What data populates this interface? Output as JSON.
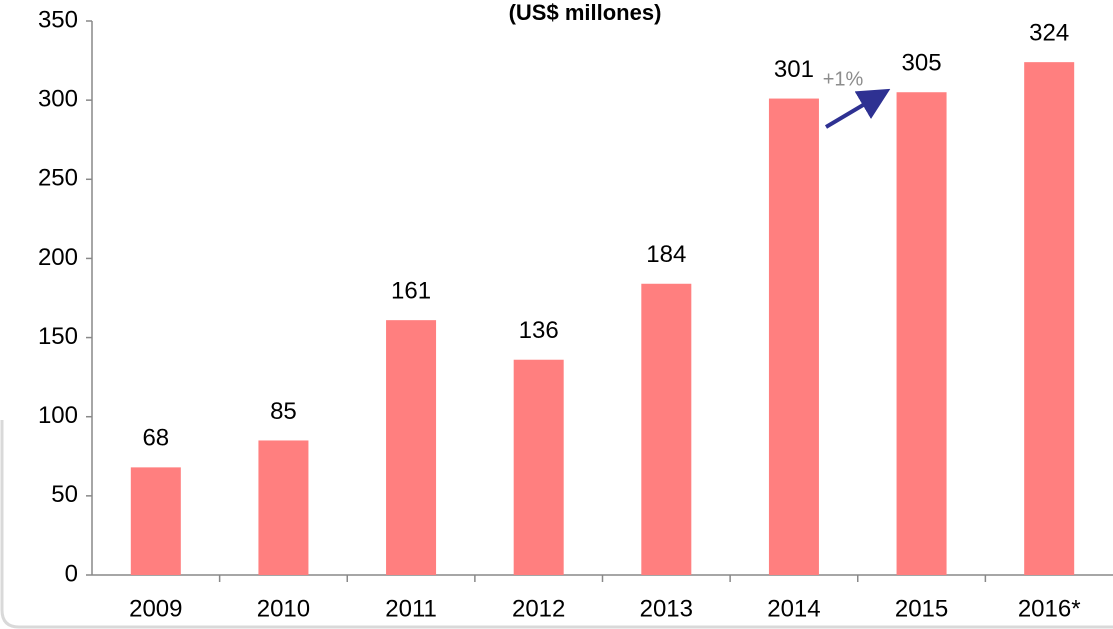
{
  "chart_data": {
    "type": "bar",
    "title": "(US$ millones)",
    "categories": [
      "2009",
      "2010",
      "2011",
      "2012",
      "2013",
      "2014",
      "2015",
      "2016*"
    ],
    "values": [
      68,
      85,
      161,
      136,
      184,
      301,
      305,
      324
    ],
    "color": "#ff7f7f",
    "ylim": [
      0,
      350
    ],
    "yticks": [
      0,
      50,
      100,
      150,
      200,
      250,
      300,
      350
    ],
    "grid": false,
    "annotations": [
      {
        "text": "+1%"
      }
    ]
  }
}
